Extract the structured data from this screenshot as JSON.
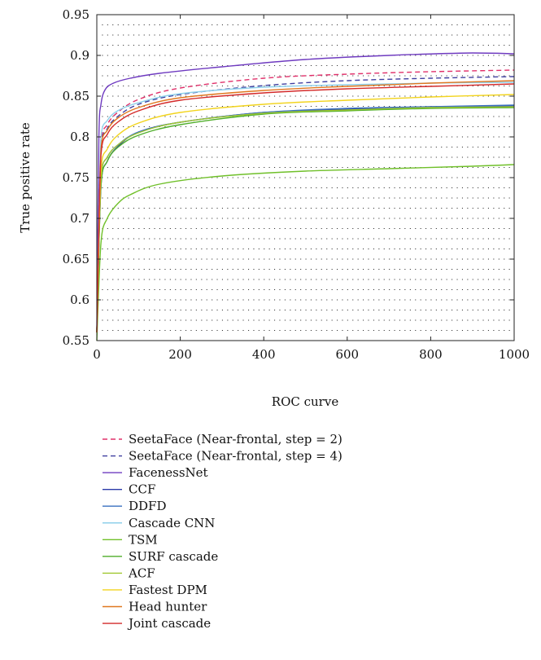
{
  "chart_data": {
    "type": "line",
    "title": "",
    "xlabel": "ROC curve",
    "ylabel": "True positive rate",
    "xlim": [
      0,
      1000
    ],
    "ylim": [
      0.55,
      0.95
    ],
    "xticks": [
      "0",
      "200",
      "400",
      "600",
      "800",
      "1000"
    ],
    "yticks": [
      "0.55",
      "0.6",
      "0.65",
      "0.7",
      "0.75",
      "0.8",
      "0.85",
      "0.9",
      "0.95"
    ],
    "grid": "dotted",
    "legend_position": "below",
    "series": [
      {
        "name": "SeetaFace (Near-frontal, step = 2)",
        "color": "#e0306a",
        "dash": "dashed",
        "x": [
          0,
          10,
          25,
          50,
          100,
          200,
          400,
          600,
          800,
          1000
        ],
        "y": [
          0.56,
          0.79,
          0.815,
          0.83,
          0.846,
          0.86,
          0.872,
          0.877,
          0.88,
          0.882
        ]
      },
      {
        "name": "SeetaFace (Near-frontal, step = 4)",
        "color": "#3f3fa0",
        "dash": "dashed",
        "x": [
          0,
          10,
          25,
          50,
          100,
          200,
          400,
          600,
          800,
          1000
        ],
        "y": [
          0.56,
          0.785,
          0.81,
          0.825,
          0.84,
          0.852,
          0.863,
          0.869,
          0.872,
          0.874
        ]
      },
      {
        "name": "FacenessNet",
        "color": "#6f3bc0",
        "dash": "solid",
        "x": [
          0,
          5,
          10,
          20,
          40,
          80,
          150,
          300,
          500,
          700,
          900,
          1000
        ],
        "y": [
          0.56,
          0.8,
          0.84,
          0.858,
          0.866,
          0.872,
          0.878,
          0.886,
          0.895,
          0.9,
          0.903,
          0.902
        ]
      },
      {
        "name": "CCF",
        "color": "#2a3aa8",
        "dash": "solid",
        "x": [
          0,
          10,
          25,
          50,
          100,
          200,
          400,
          600,
          800,
          1000
        ],
        "y": [
          0.56,
          0.74,
          0.77,
          0.788,
          0.806,
          0.818,
          0.83,
          0.834,
          0.837,
          0.838
        ]
      },
      {
        "name": "DDFD",
        "color": "#3a70c0",
        "dash": "solid",
        "x": [
          0,
          10,
          25,
          50,
          100,
          200,
          400,
          600,
          800,
          1000
        ],
        "y": [
          0.56,
          0.75,
          0.775,
          0.79,
          0.806,
          0.818,
          0.83,
          0.835,
          0.837,
          0.839
        ]
      },
      {
        "name": "Cascade CNN",
        "color": "#8fd0ea",
        "dash": "solid",
        "x": [
          0,
          10,
          25,
          50,
          100,
          200,
          400,
          600,
          800,
          1000
        ],
        "y": [
          0.56,
          0.8,
          0.82,
          0.832,
          0.842,
          0.853,
          0.861,
          0.864,
          0.866,
          0.867
        ]
      },
      {
        "name": "TSM",
        "color": "#70c02a",
        "dash": "solid",
        "x": [
          0,
          10,
          25,
          50,
          80,
          150,
          300,
          500,
          700,
          900,
          1000
        ],
        "y": [
          0.55,
          0.67,
          0.7,
          0.718,
          0.729,
          0.742,
          0.752,
          0.758,
          0.761,
          0.764,
          0.766
        ]
      },
      {
        "name": "SURF cascade",
        "color": "#4fae2a",
        "dash": "solid",
        "x": [
          0,
          10,
          25,
          50,
          100,
          200,
          400,
          600,
          800,
          1000
        ],
        "y": [
          0.56,
          0.74,
          0.77,
          0.787,
          0.802,
          0.815,
          0.828,
          0.832,
          0.835,
          0.836
        ]
      },
      {
        "name": "ACF",
        "color": "#a0c830",
        "dash": "solid",
        "x": [
          0,
          10,
          25,
          50,
          100,
          200,
          400,
          600,
          800,
          1000
        ],
        "y": [
          0.56,
          0.75,
          0.775,
          0.79,
          0.805,
          0.818,
          0.829,
          0.833,
          0.836,
          0.837
        ]
      },
      {
        "name": "Fastest DPM",
        "color": "#f2d41e",
        "dash": "solid",
        "x": [
          0,
          10,
          25,
          50,
          100,
          200,
          400,
          600,
          800,
          1000
        ],
        "y": [
          0.56,
          0.76,
          0.785,
          0.802,
          0.817,
          0.83,
          0.84,
          0.845,
          0.849,
          0.852
        ]
      },
      {
        "name": "Head hunter",
        "color": "#e07820",
        "dash": "solid",
        "x": [
          0,
          10,
          25,
          50,
          100,
          200,
          400,
          600,
          800,
          1000
        ],
        "y": [
          0.56,
          0.785,
          0.808,
          0.823,
          0.836,
          0.848,
          0.857,
          0.862,
          0.866,
          0.869
        ]
      },
      {
        "name": "Joint cascade",
        "color": "#d42a2a",
        "dash": "solid",
        "x": [
          0,
          10,
          25,
          50,
          100,
          200,
          400,
          600,
          800,
          1000
        ],
        "y": [
          0.56,
          0.778,
          0.803,
          0.818,
          0.832,
          0.845,
          0.854,
          0.859,
          0.862,
          0.865
        ]
      }
    ]
  }
}
